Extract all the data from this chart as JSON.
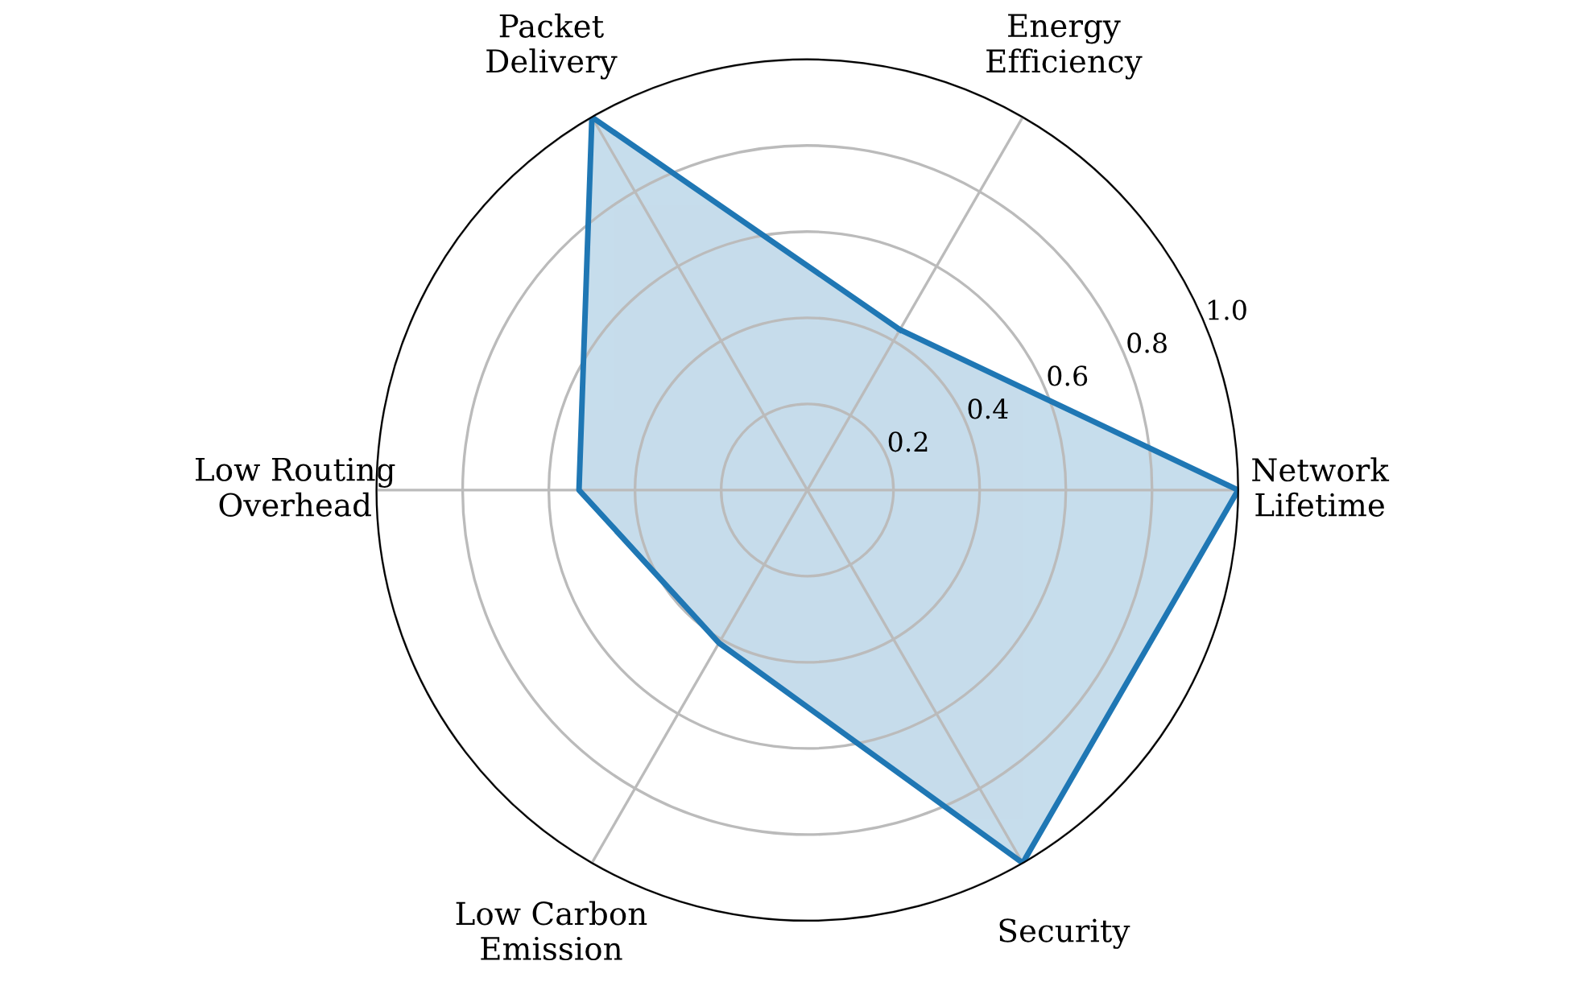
{
  "chart_data": {
    "type": "radar",
    "categories": [
      "Energy\nEfficiency",
      "Network\nLifetime",
      "Security",
      "Low Carbon\nEmission",
      "Low Routing\nOverhead",
      "Packet\nDelivery"
    ],
    "series": [
      {
        "color": "#1f77b4",
        "values": [
          0.43,
          1.0,
          1.0,
          0.41,
          0.53,
          1.0
        ]
      }
    ],
    "ylim": [
      0,
      1.0
    ],
    "yticks": [
      0.2,
      0.4,
      0.6,
      0.8,
      {
        "value": 1.0,
        "label": "1.0"
      }
    ],
    "grid": true,
    "legend": false
  }
}
